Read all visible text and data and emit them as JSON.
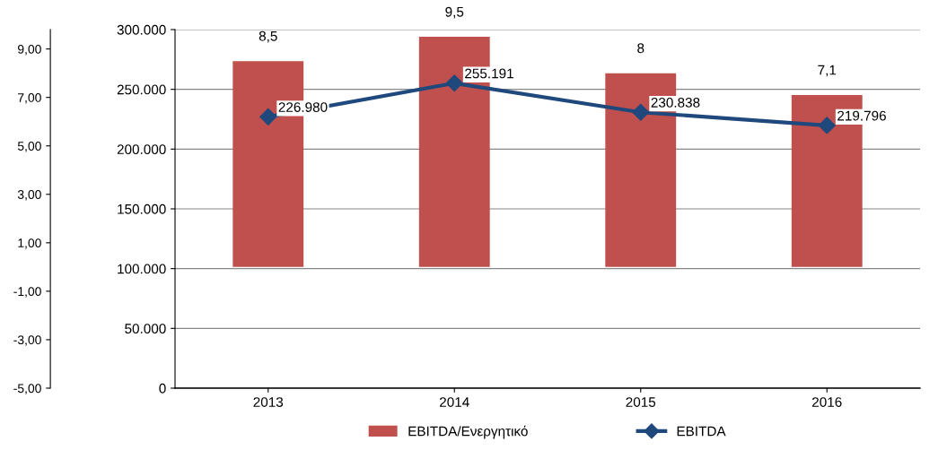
{
  "chart_data": {
    "type": "bar",
    "categories": [
      "2013",
      "2014",
      "2015",
      "2016"
    ],
    "series": [
      {
        "name": "EBITDA/Ενεργητικό",
        "color": "#c0504d",
        "values": [
          8.5,
          9.5,
          8,
          7.1
        ],
        "value_labels": [
          "8,5",
          "9,5",
          "8",
          "7,1"
        ]
      },
      {
        "name": "EBITDA",
        "type": "line",
        "axis": "y2",
        "color": "#1f497d",
        "marker": "diamond",
        "values": [
          226980,
          255191,
          230838,
          219796
        ],
        "value_labels": [
          "226.980",
          "255.191",
          "230.838",
          "219.796"
        ]
      }
    ],
    "ylim": [
      -5,
      9.8
    ],
    "yticks": [
      {
        "value": -5,
        "label": "-5,00"
      },
      {
        "value": -3,
        "label": "-3,00"
      },
      {
        "value": -1,
        "label": "-1,00"
      },
      {
        "value": 1,
        "label": "1,00"
      },
      {
        "value": 3,
        "label": "3,00"
      },
      {
        "value": 5,
        "label": "5,00"
      },
      {
        "value": 7,
        "label": "7,00"
      },
      {
        "value": 9,
        "label": "9,00"
      }
    ],
    "y2lim": [
      0,
      300000
    ],
    "y2ticks": [
      0,
      {
        "value": 50000,
        "label": "50.000"
      },
      {
        "value": 100000,
        "label": "100.000"
      },
      {
        "value": 150000,
        "label": "150.000"
      },
      {
        "value": 200000,
        "label": "200.000"
      },
      {
        "value": 250000,
        "label": "250.000"
      },
      {
        "value": 300000,
        "label": "300.000"
      }
    ],
    "grid": "y2",
    "legend": "bottom"
  }
}
